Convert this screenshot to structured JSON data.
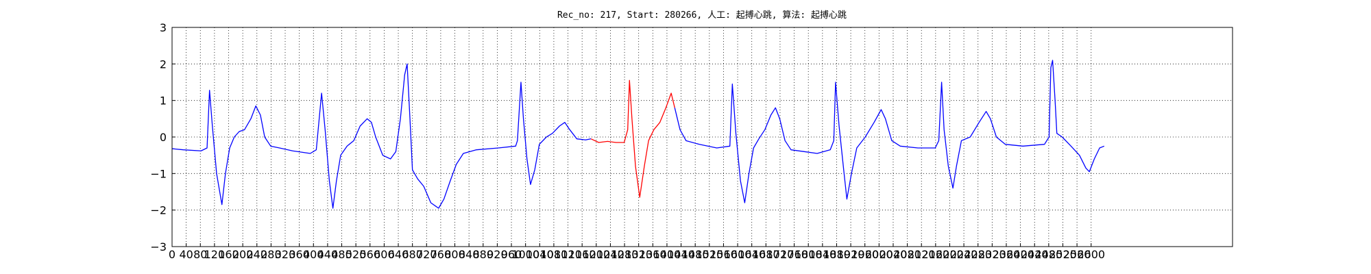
{
  "chart_data": {
    "type": "line",
    "title": "Rec_no: 217, Start: 280266, 人工: 起搏心跳, 算法: 起搏心跳",
    "xlim": [
      0,
      3000
    ],
    "ylim": [
      -3,
      3
    ],
    "xticks": [
      0,
      40,
      80,
      120,
      160,
      200,
      240,
      280,
      320,
      360,
      400,
      440,
      480,
      520,
      560,
      600,
      640,
      680,
      720,
      760,
      800,
      840,
      880,
      920,
      960,
      1000,
      1040,
      1080,
      1120,
      1160,
      1200,
      1240,
      1280,
      1320,
      1360,
      1400,
      1440,
      1480,
      1520,
      1560,
      1600,
      1640,
      1680,
      1720,
      1760,
      1800,
      1840,
      1880,
      1920,
      1960,
      2000,
      2040,
      2080,
      2120,
      2160,
      2200,
      2240,
      2280,
      2320,
      2360,
      2400,
      2440,
      2480,
      2520,
      2560,
      2600
    ],
    "yticks": [
      {
        "value": -3,
        "label": "−3"
      },
      {
        "value": -2,
        "label": "−2"
      },
      {
        "value": -1,
        "label": "−1"
      },
      0,
      1,
      2,
      3
    ],
    "grid": true,
    "series": [
      {
        "color": "#0000ff",
        "x": [
          0,
          32,
          82,
          99,
          106,
          114,
          126,
          141,
          151,
          163,
          176,
          190,
          205,
          223,
          237,
          250,
          262,
          279,
          304,
          341,
          391,
          408,
          423,
          433,
          445,
          455,
          465,
          477,
          495,
          514,
          532,
          552,
          564,
          576,
          596,
          618,
          633,
          646,
          658,
          665,
          673,
          680,
          695,
          712,
          732,
          754,
          769,
          787,
          804,
          824,
          861,
          923,
          972,
          977,
          987,
          994,
          1004,
          1014,
          1026,
          1039,
          1059,
          1076,
          1096,
          1111,
          1125,
          1145,
          1170,
          1185
        ],
        "values": [
          -0.32,
          -0.35,
          -0.38,
          -0.3,
          1.28,
          0.3,
          -1.0,
          -1.85,
          -1.0,
          -0.3,
          0.0,
          0.15,
          0.2,
          0.5,
          0.85,
          0.6,
          0.0,
          -0.25,
          -0.3,
          -0.38,
          -0.45,
          -0.35,
          1.2,
          0.2,
          -1.2,
          -1.95,
          -1.2,
          -0.5,
          -0.25,
          -0.1,
          0.3,
          0.5,
          0.4,
          0.0,
          -0.5,
          -0.6,
          -0.4,
          0.5,
          1.7,
          2.0,
          0.5,
          -0.9,
          -1.15,
          -1.35,
          -1.8,
          -1.95,
          -1.7,
          -1.2,
          -0.75,
          -0.45,
          -0.35,
          -0.3,
          -0.25,
          -0.1,
          1.5,
          0.5,
          -0.6,
          -1.3,
          -0.9,
          -0.2,
          0.0,
          0.1,
          0.3,
          0.4,
          0.2,
          -0.05,
          -0.08,
          -0.05
        ]
      },
      {
        "color": "#ff0000",
        "x": [
          1185,
          1207,
          1232,
          1256,
          1279,
          1289,
          1294,
          1301,
          1311,
          1323,
          1336,
          1348,
          1363,
          1380,
          1397,
          1412,
          1422
        ],
        "values": [
          -0.05,
          -0.15,
          -0.12,
          -0.15,
          -0.15,
          0.2,
          1.55,
          0.5,
          -0.8,
          -1.65,
          -0.8,
          -0.1,
          0.2,
          0.4,
          0.8,
          1.2,
          0.8
        ]
      },
      {
        "color": "#0000ff",
        "x": [
          1422,
          1437,
          1454,
          1491,
          1541,
          1578,
          1585,
          1595,
          1608,
          1620,
          1632,
          1645,
          1660,
          1677,
          1694,
          1707,
          1719,
          1734,
          1751,
          1788,
          1825,
          1862,
          1872,
          1877,
          1887,
          1900,
          1909,
          1922,
          1937,
          1961,
          1986,
          2006,
          2018,
          2036,
          2060,
          2110,
          2159,
          2169,
          2177,
          2184,
          2196,
          2209,
          2219,
          2233,
          2258,
          2283,
          2303,
          2315,
          2332,
          2357,
          2407,
          2468,
          2481,
          2486,
          2491,
          2498,
          2503,
          2518,
          2543,
          2567,
          2585,
          2595,
          2609,
          2624,
          2637
        ],
        "values": [
          0.8,
          0.2,
          -0.1,
          -0.2,
          -0.3,
          -0.25,
          1.45,
          0.1,
          -1.2,
          -1.8,
          -1.0,
          -0.3,
          -0.05,
          0.2,
          0.6,
          0.8,
          0.5,
          -0.1,
          -0.35,
          -0.4,
          -0.45,
          -0.35,
          -0.1,
          1.5,
          0.3,
          -0.9,
          -1.7,
          -1.0,
          -0.3,
          0.0,
          0.4,
          0.75,
          0.5,
          -0.1,
          -0.25,
          -0.3,
          -0.3,
          -0.1,
          1.5,
          0.2,
          -0.8,
          -1.4,
          -0.8,
          -0.1,
          0.0,
          0.4,
          0.7,
          0.5,
          0.0,
          -0.2,
          -0.25,
          -0.2,
          0.0,
          1.9,
          2.1,
          1.0,
          0.1,
          0.0,
          -0.25,
          -0.5,
          -0.85,
          -0.95,
          -0.6,
          -0.3,
          -0.25
        ]
      }
    ]
  }
}
